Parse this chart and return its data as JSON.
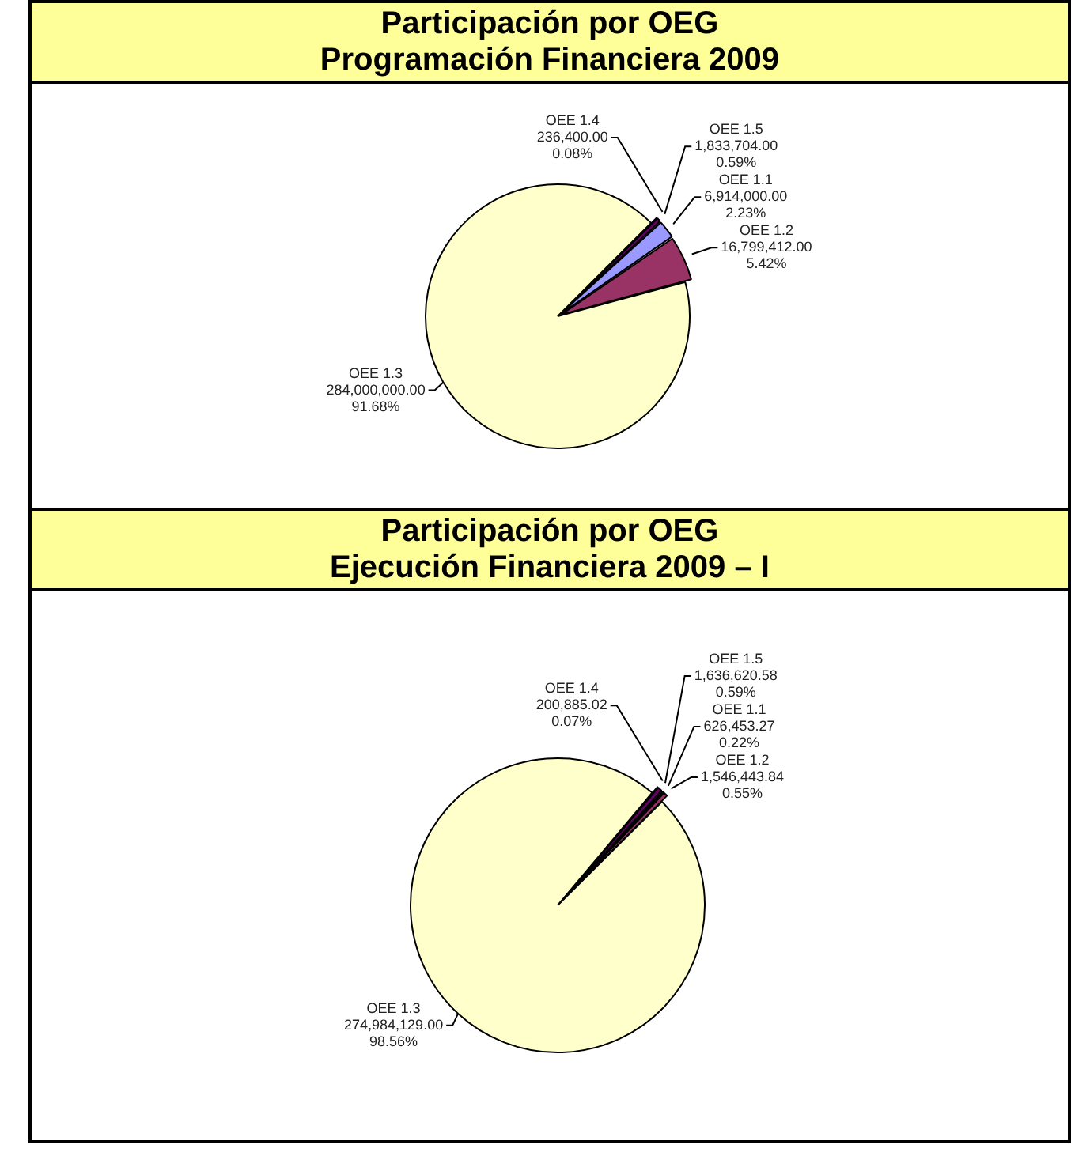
{
  "chart_data": [
    {
      "type": "pie",
      "title": "Participación por OEG",
      "subtitle": "Programación Financiera 2009",
      "categories": [
        "OEE 1.4",
        "OEE 1.5",
        "OEE 1.1",
        "OEE 1.2",
        "OEE 1.3"
      ],
      "values": [
        236400,
        1833704,
        6914000,
        16799412,
        284000000
      ],
      "colors": [
        "#1a1a40",
        "#660066",
        "#9999ff",
        "#993366",
        "#ffffcc"
      ],
      "value_labels": [
        "236,400.00",
        "1,833,704.00",
        "6,914,000.00",
        "16,799,412.00",
        "284,000,000.00"
      ],
      "annotations": [
        "0.08%",
        "0.59%",
        "2.23%",
        "5.42%",
        "91.68%"
      ]
    },
    {
      "type": "pie",
      "title": "Participación por OEG",
      "subtitle": "Ejecución Financiera 2009 – I",
      "categories": [
        "OEE 1.4",
        "OEE 1.5",
        "OEE 1.1",
        "OEE 1.2",
        "OEE 1.3"
      ],
      "values": [
        200885.02,
        1636620.58,
        626453.27,
        1546443.84,
        274984129
      ],
      "colors": [
        "#1a1a40",
        "#660066",
        "#9999ff",
        "#993366",
        "#ffffcc"
      ],
      "value_labels": [
        "200,885.02",
        "1,636,620.58",
        "626,453.27",
        "1,546,443.84",
        "274,984,129.00"
      ],
      "annotations": [
        "0.07%",
        "0.59%",
        "0.22%",
        "0.55%",
        "98.56%"
      ]
    }
  ]
}
